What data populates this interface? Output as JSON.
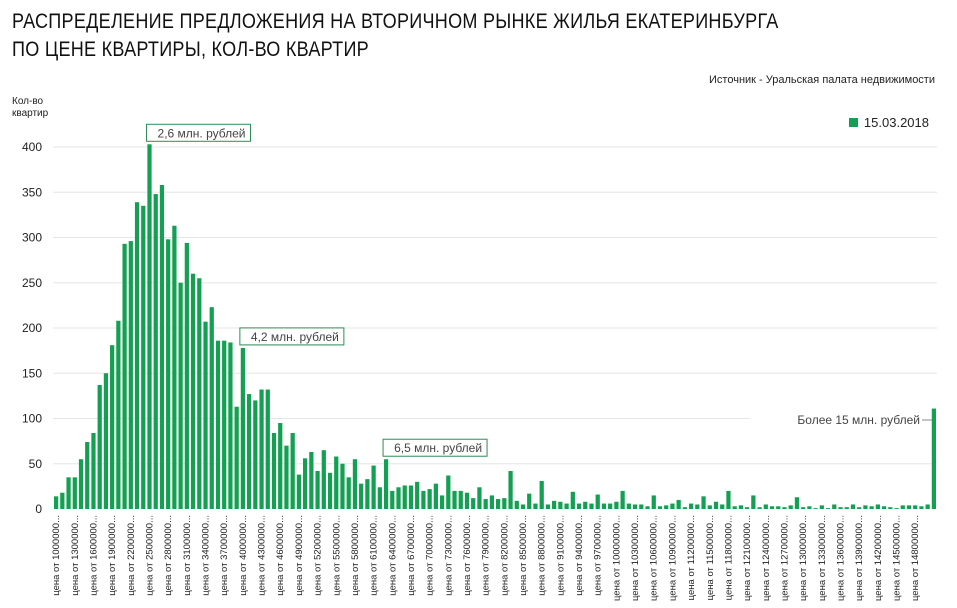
{
  "chart_data": {
    "type": "bar",
    "title_line1": "РАСПРЕДЕЛЕНИЕ ПРЕДЛОЖЕНИЯ НА ВТОРИЧНОМ РЫНКЕ ЖИЛЬЯ ЕКАТЕРИНБУРГА",
    "title_line2": "ПО ЦЕНЕ КВАРТИРЫ, КОЛ-ВО КВАРТИР",
    "source": "Источник - Уральская палата недвижимости",
    "ylabel_line1": "Кол-во",
    "ylabel_line2": "квартир",
    "legend": "15.03.2018",
    "color": "#13a052",
    "ylim": [
      0,
      400
    ],
    "yticks": [
      "0",
      "50",
      "100",
      "150",
      "200",
      "250",
      "300",
      "350",
      "400"
    ],
    "tick_labels": [
      "цена от 1000000...",
      "цена от 1300000...",
      "цена от 1600000...",
      "цена от 1900000...",
      "цена от 2200000...",
      "цена от 2500000...",
      "цена от 2800000...",
      "цена от 3100000...",
      "цена от 3400000...",
      "цена от 3700000...",
      "цена от 4000000...",
      "цена от 4300000...",
      "цена от 4600000...",
      "цена от 4900000...",
      "цена от 5200000...",
      "цена от 5500000...",
      "цена от 5800000...",
      "цена от 6100000...",
      "цена от 6400000...",
      "цена от 6700000...",
      "цена от 7000000...",
      "цена от 7300000...",
      "цена от 7600000...",
      "цена от 7900000...",
      "цена от 8200000...",
      "цена от 8500000...",
      "цена от 8800000...",
      "цена от 9100000...",
      "цена от 9400000...",
      "цена от 9700000...",
      "цена от 10000000...",
      "цена от 10300000...",
      "цена от 10600000...",
      "цена от 10900000...",
      "цена от 11200000...",
      "цена от 11500000...",
      "цена от 11800000...",
      "цена от 12100000...",
      "цена от 12400000...",
      "цена от 12700000...",
      "цена от 13000000...",
      "цена от 13300000...",
      "цена от 13600000...",
      "цена от 13900000...",
      "цена от 14200000...",
      "цена от 14500000...",
      "цена от 14800000..."
    ],
    "values": [
      14,
      18,
      35,
      35,
      55,
      74,
      84,
      137,
      150,
      181,
      208,
      293,
      296,
      339,
      335,
      403,
      348,
      358,
      298,
      313,
      250,
      294,
      260,
      255,
      207,
      223,
      186,
      186,
      184,
      113,
      178,
      127,
      120,
      132,
      132,
      84,
      95,
      70,
      84,
      38,
      56,
      63,
      42,
      65,
      40,
      58,
      50,
      35,
      55,
      28,
      33,
      48,
      24,
      55,
      20,
      24,
      26,
      26,
      30,
      20,
      22,
      28,
      15,
      37,
      20,
      20,
      18,
      12,
      24,
      11,
      15,
      11,
      12,
      42,
      9,
      5,
      17,
      6,
      31,
      5,
      9,
      8,
      6,
      19,
      6,
      8,
      6,
      16,
      6,
      6,
      8,
      20,
      6,
      5,
      5,
      3,
      15,
      3,
      4,
      6,
      10,
      2,
      6,
      5,
      14,
      4,
      8,
      5,
      20,
      3,
      4,
      2,
      15,
      2,
      5,
      3,
      3,
      2,
      4,
      13,
      2,
      3,
      1,
      4,
      1,
      5,
      2,
      2,
      5,
      2,
      4,
      3,
      5,
      3,
      2,
      1,
      4,
      4,
      4,
      3,
      5,
      111
    ],
    "annotations": [
      {
        "text": "2,6 млн. рублей",
        "bar_index": 15
      },
      {
        "text": "4,2 млн. рублей",
        "bar_index": 30
      },
      {
        "text": "6,5 млн. рублей",
        "bar_index": 53
      },
      {
        "text": "Более 15 млн. рублей",
        "bar_index": 141
      }
    ]
  }
}
